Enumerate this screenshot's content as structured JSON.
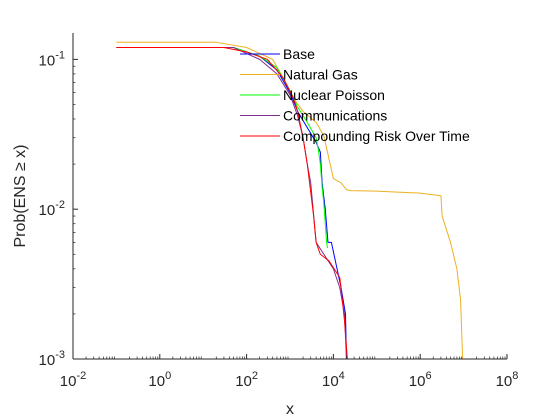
{
  "chart_data": {
    "type": "line",
    "xscale": "log",
    "yscale": "log",
    "xlabel": "x",
    "ylabel": "Prob(ENS ≥ x)",
    "xlim": [
      0.01,
      100000000
    ],
    "ylim": [
      0.001,
      0.15
    ],
    "x_ticks": [
      {
        "base": "10",
        "exp": "-2"
      },
      {
        "base": "10",
        "exp": "0"
      },
      {
        "base": "10",
        "exp": "2"
      },
      {
        "base": "10",
        "exp": "4"
      },
      {
        "base": "10",
        "exp": "6"
      },
      {
        "base": "10",
        "exp": "8"
      }
    ],
    "y_ticks": [
      {
        "base": "10",
        "exp": "-3"
      },
      {
        "base": "10",
        "exp": "-2"
      },
      {
        "base": "10",
        "exp": "-1"
      }
    ],
    "grid": false,
    "legend_position": "inside, upper center",
    "series": [
      {
        "name": "Base",
        "color": "#0000ff",
        "points": [
          [
            0.1,
            0.12
          ],
          [
            50,
            0.12
          ],
          [
            200,
            0.105
          ],
          [
            500,
            0.085
          ],
          [
            1000,
            0.06
          ],
          [
            1500,
            0.045
          ],
          [
            2500,
            0.035
          ],
          [
            4000,
            0.028
          ],
          [
            5000,
            0.024
          ],
          [
            5500,
            0.015
          ],
          [
            6500,
            0.01
          ],
          [
            7500,
            0.006
          ],
          [
            9000,
            0.006
          ],
          [
            15000,
            0.003
          ],
          [
            19000,
            0.002
          ],
          [
            20000,
            0.001
          ]
        ]
      },
      {
        "name": "Natural Gas",
        "color": "#edb120",
        "points": [
          [
            0.1,
            0.13
          ],
          [
            20,
            0.13
          ],
          [
            100,
            0.12
          ],
          [
            400,
            0.1
          ],
          [
            800,
            0.07
          ],
          [
            1200,
            0.055
          ],
          [
            2000,
            0.045
          ],
          [
            4000,
            0.038
          ],
          [
            6000,
            0.031
          ],
          [
            10000,
            0.016
          ],
          [
            15000,
            0.015
          ],
          [
            20000,
            0.0135
          ],
          [
            25000,
            0.0133
          ],
          [
            100000,
            0.0132
          ],
          [
            1000000,
            0.0128
          ],
          [
            3000000,
            0.0123
          ],
          [
            3200000,
            0.009
          ],
          [
            5000000,
            0.006
          ],
          [
            7000000,
            0.004
          ],
          [
            8500000,
            0.0025
          ],
          [
            9500000,
            0.001
          ]
        ]
      },
      {
        "name": "Nuclear Poisson",
        "color": "#00ff00",
        "points": [
          [
            0.1,
            0.12
          ],
          [
            50,
            0.12
          ],
          [
            200,
            0.105
          ],
          [
            500,
            0.088
          ],
          [
            1000,
            0.062
          ],
          [
            1500,
            0.048
          ],
          [
            2500,
            0.038
          ],
          [
            4000,
            0.03
          ],
          [
            4500,
            0.025
          ],
          [
            5000,
            0.02
          ],
          [
            5500,
            0.014
          ],
          [
            6000,
            0.011
          ],
          [
            6500,
            0.008
          ],
          [
            7000,
            0.006
          ],
          [
            7300,
            0.0055
          ]
        ]
      },
      {
        "name": "Communications",
        "color": "#7e2f8e",
        "points": [
          [
            0.1,
            0.12
          ],
          [
            50,
            0.12
          ],
          [
            200,
            0.1
          ],
          [
            500,
            0.08
          ],
          [
            1000,
            0.058
          ],
          [
            1500,
            0.042
          ],
          [
            2000,
            0.03
          ],
          [
            2500,
            0.02
          ],
          [
            3000,
            0.015
          ],
          [
            4000,
            0.006
          ],
          [
            10000,
            0.004
          ],
          [
            14000,
            0.003
          ],
          [
            18000,
            0.002
          ],
          [
            20000,
            0.001
          ]
        ]
      },
      {
        "name": "Compounding Risk Over Time",
        "color": "#ff0000",
        "points": [
          [
            0.1,
            0.12
          ],
          [
            30,
            0.12
          ],
          [
            100,
            0.112
          ],
          [
            300,
            0.1
          ],
          [
            700,
            0.075
          ],
          [
            1200,
            0.055
          ],
          [
            1500,
            0.045
          ],
          [
            2000,
            0.03
          ],
          [
            2500,
            0.02
          ],
          [
            3000,
            0.013
          ],
          [
            3500,
            0.009
          ],
          [
            4000,
            0.006
          ],
          [
            5000,
            0.005
          ],
          [
            8000,
            0.0045
          ],
          [
            14000,
            0.0035
          ],
          [
            15000,
            0.003
          ],
          [
            18000,
            0.0018
          ],
          [
            21000,
            0.001
          ]
        ]
      }
    ]
  }
}
